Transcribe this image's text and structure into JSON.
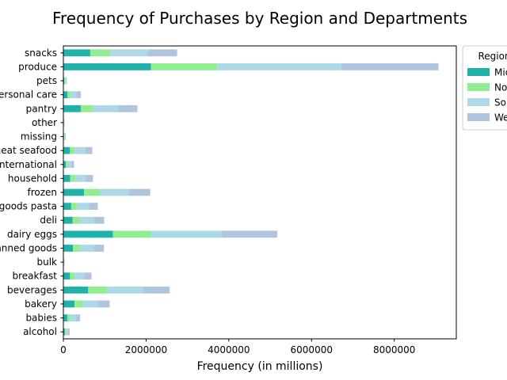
{
  "chart_data": {
    "type": "bar",
    "orientation": "horizontal",
    "stacked": true,
    "title": "Frequency of Purchases by Region and Departments",
    "xlabel": "Frequency (in millions)",
    "ylabel": "",
    "xlim": [
      0,
      9500000
    ],
    "xticks": [
      0,
      2000000,
      4000000,
      6000000,
      8000000
    ],
    "xtick_labels": [
      "0",
      "2000000",
      "4000000",
      "6000000",
      "8000000"
    ],
    "grid": false,
    "legend": {
      "title": "Region",
      "placement": "outside-top-right",
      "entries": [
        "Midwest",
        "Northeast",
        "South",
        "West"
      ]
    },
    "categories": [
      "alcohol",
      "babies",
      "bakery",
      "beverages",
      "breakfast",
      "bulk",
      "canned goods",
      "dairy eggs",
      "deli",
      "dry goods pasta",
      "frozen",
      "household",
      "international",
      "meat seafood",
      "missing",
      "other",
      "pantry",
      "personal care",
      "pets",
      "produce",
      "snacks"
    ],
    "series": [
      {
        "name": "Midwest",
        "color": "#20b2aa",
        "values": [
          35000,
          95000,
          270000,
          600000,
          160000,
          8000,
          230000,
          1200000,
          225000,
          190000,
          500000,
          165000,
          60000,
          160000,
          15000,
          8000,
          420000,
          100000,
          20000,
          2120000,
          650000
        ]
      },
      {
        "name": "Northeast",
        "color": "#90ee90",
        "values": [
          25000,
          70000,
          200000,
          450000,
          110000,
          6000,
          170000,
          920000,
          170000,
          140000,
          380000,
          120000,
          45000,
          110000,
          10000,
          6000,
          300000,
          70000,
          15000,
          1600000,
          480000
        ]
      },
      {
        "name": "South",
        "color": "#add8e6",
        "values": [
          50000,
          140000,
          370000,
          890000,
          240000,
          10000,
          340000,
          1720000,
          340000,
          290000,
          710000,
          250000,
          90000,
          260000,
          20000,
          10000,
          620000,
          140000,
          30000,
          3000000,
          920000
        ]
      },
      {
        "name": "West",
        "color": "#b0c4de",
        "values": [
          40000,
          100000,
          280000,
          630000,
          170000,
          8000,
          240000,
          1330000,
          250000,
          210000,
          510000,
          180000,
          65000,
          170000,
          15000,
          8000,
          450000,
          110000,
          20000,
          2350000,
          700000
        ]
      }
    ]
  }
}
